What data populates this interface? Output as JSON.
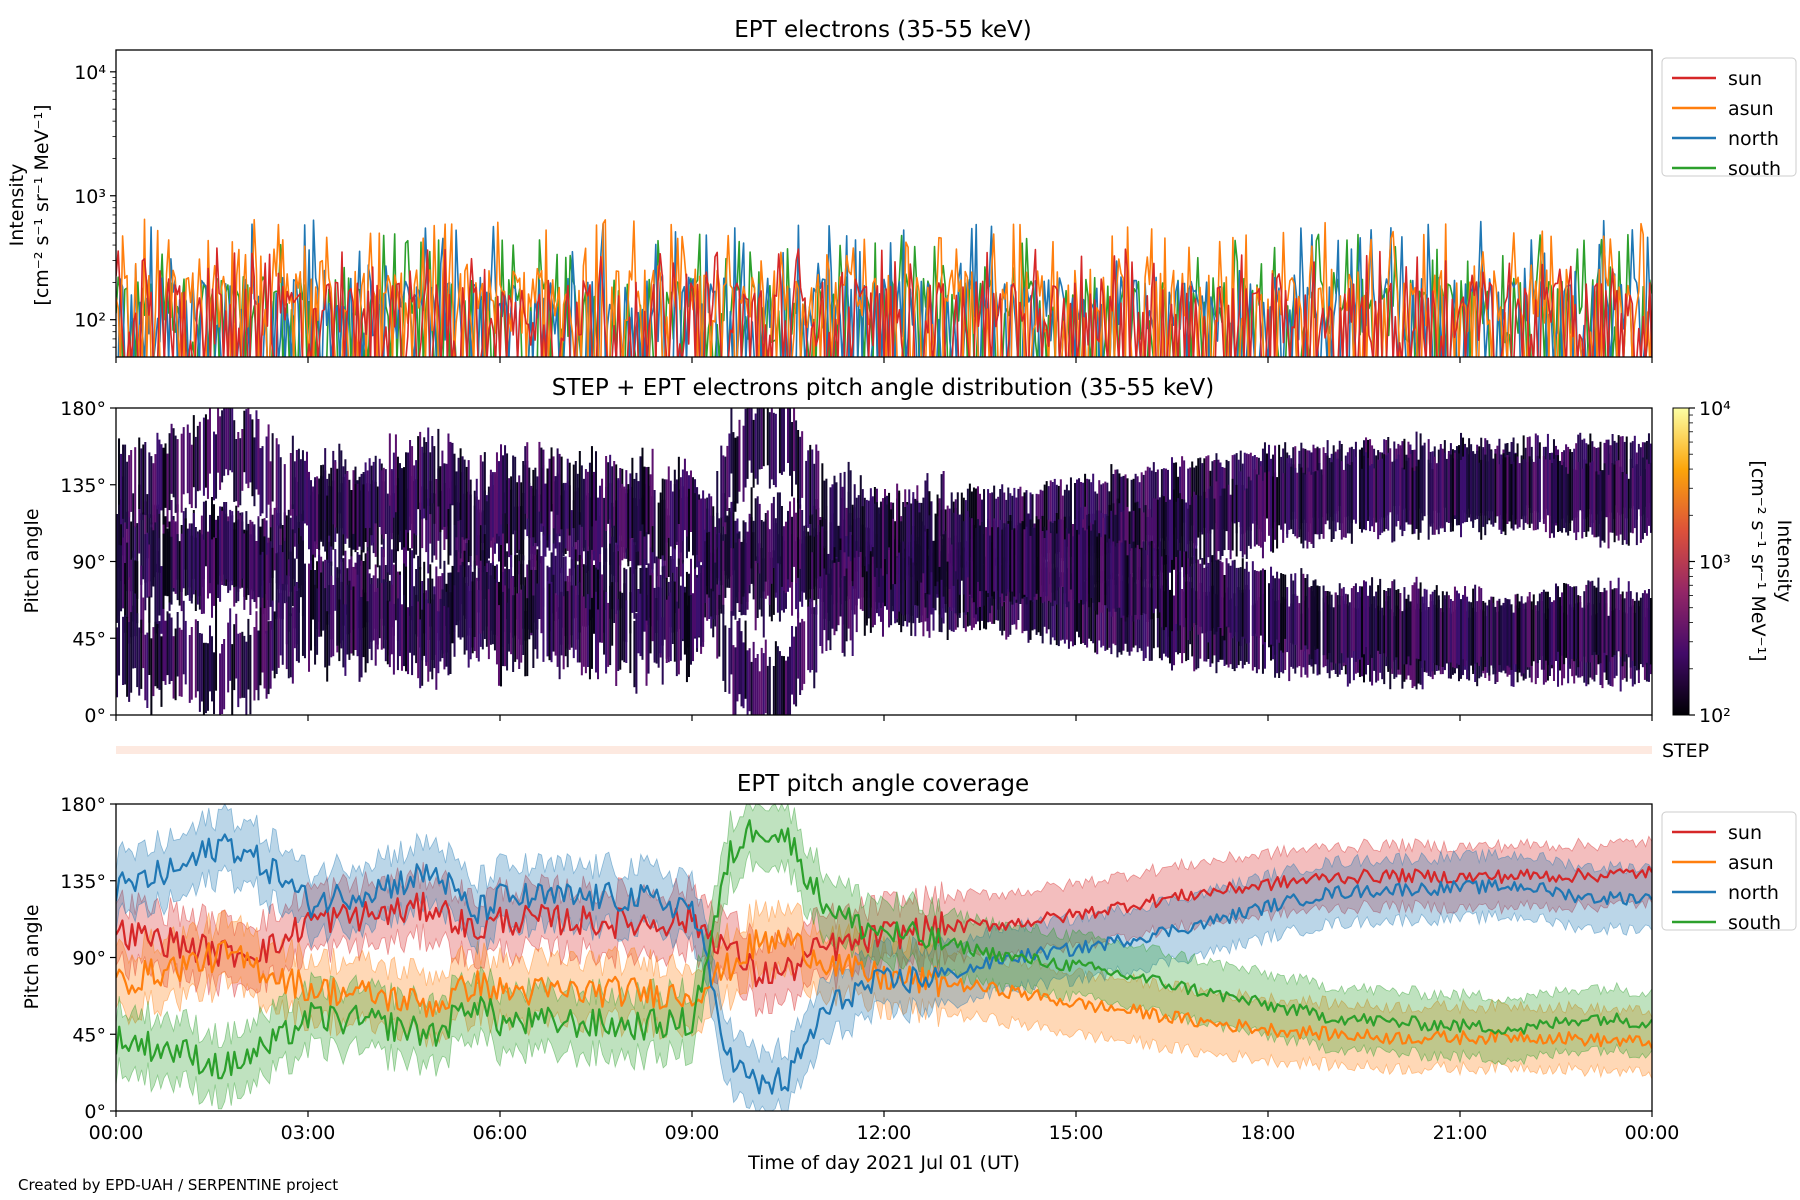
{
  "figure": {
    "credit": "Created by EPD-UAH / SERPENTINE project"
  },
  "chart_data": [
    {
      "type": "line",
      "title": "EPT electrons (35-55 keV)",
      "ylabel": [
        "Intensity",
        "[cm⁻² s⁻¹ sr⁻¹ MeV⁻¹]"
      ],
      "yscale": "log",
      "ylim": [
        50,
        15000
      ],
      "yticks": [
        {
          "value": 100,
          "label": "10²"
        },
        {
          "value": 1000,
          "label": "10³"
        },
        {
          "value": 10000,
          "label": "10⁴"
        }
      ],
      "xlim": [
        "2021-07-01 00:00",
        "2021-07-02 00:00"
      ],
      "legend": "right-outside",
      "series": [
        {
          "name": "sun",
          "color": "#d62728",
          "typical": 120,
          "peak_max": 380
        },
        {
          "name": "asun",
          "color": "#ff7f0e",
          "typical": 150,
          "peak_max": 650
        },
        {
          "name": "north",
          "color": "#1f77b4",
          "typical": 130,
          "peak_max": 650
        },
        {
          "name": "south",
          "color": "#2ca02c",
          "typical": 130,
          "peak_max": 500
        }
      ]
    },
    {
      "type": "heatmap",
      "title": "STEP + EPT electrons pitch angle distribution (35-55 keV)",
      "ylabel": "Pitch angle",
      "ylim": [
        0,
        180
      ],
      "yticks": [
        "0°",
        "45°",
        "90°",
        "135°",
        "180°"
      ],
      "colorbar": {
        "label": [
          "Intensity",
          "[cm⁻² s⁻¹ sr⁻¹ MeV⁻¹]"
        ],
        "scale": "log",
        "range": [
          100,
          10000
        ],
        "ticks": [
          "10²",
          "10³",
          "10⁴"
        ],
        "colormap": "inferno",
        "colors": [
          "#000004",
          "#420a68",
          "#932667",
          "#dd513a",
          "#fca50a",
          "#fcffa4"
        ]
      },
      "step_label": "STEP",
      "bands_follow": "EPT pitch angle coverage"
    },
    {
      "type": "area",
      "title": "EPT pitch angle coverage",
      "ylabel": "Pitch angle",
      "xlabel": "Time of day 2021 Jul 01 (UT)",
      "ylim": [
        0,
        180
      ],
      "yticks": [
        {
          "value": 0,
          "label": "0°"
        },
        {
          "value": 45,
          "label": "45°"
        },
        {
          "value": 90,
          "label": "90°"
        },
        {
          "value": 135,
          "label": "135°"
        },
        {
          "value": 180,
          "label": "180°"
        }
      ],
      "xticks": [
        {
          "hour": 0,
          "label": "00:00"
        },
        {
          "hour": 3,
          "label": "03:00"
        },
        {
          "hour": 6,
          "label": "06:00"
        },
        {
          "hour": 9,
          "label": "09:00"
        },
        {
          "hour": 12,
          "label": "12:00"
        },
        {
          "hour": 15,
          "label": "15:00"
        },
        {
          "hour": 18,
          "label": "18:00"
        },
        {
          "hour": 21,
          "label": "21:00"
        },
        {
          "hour": 24,
          "label": "00:00"
        }
      ],
      "legend": "right-outside",
      "x_hours": [
        0,
        1,
        1.7,
        2.5,
        3,
        4,
        5,
        5.6,
        6,
        7,
        8,
        9,
        9.6,
        10,
        10.5,
        11,
        11.5,
        12,
        13,
        14,
        15,
        16,
        17,
        18,
        19,
        20,
        21,
        22,
        23,
        24
      ],
      "series": [
        {
          "name": "sun",
          "color": "#d62728",
          "band_halfwidth": 18,
          "values": [
            105,
            98,
            92,
            96,
            112,
            115,
            120,
            105,
            112,
            112,
            110,
            112,
            95,
            80,
            82,
            95,
            98,
            103,
            108,
            110,
            115,
            122,
            128,
            133,
            137,
            138,
            137,
            138,
            138,
            140
          ]
        },
        {
          "name": "asun",
          "color": "#ff7f0e",
          "band_halfwidth": 18,
          "values": [
            75,
            85,
            92,
            80,
            72,
            68,
            62,
            75,
            70,
            70,
            70,
            68,
            85,
            98,
            100,
            90,
            82,
            78,
            75,
            70,
            63,
            58,
            52,
            48,
            45,
            43,
            43,
            44,
            42,
            40
          ]
        },
        {
          "name": "north",
          "color": "#1f77b4",
          "band_halfwidth": 18,
          "values": [
            130,
            142,
            158,
            140,
            122,
            130,
            140,
            115,
            125,
            125,
            125,
            120,
            30,
            15,
            18,
            55,
            70,
            75,
            80,
            90,
            95,
            102,
            110,
            120,
            128,
            130,
            131,
            132,
            125,
            125
          ]
        },
        {
          "name": "south",
          "color": "#2ca02c",
          "band_halfwidth": 18,
          "values": [
            42,
            35,
            25,
            40,
            55,
            52,
            45,
            65,
            52,
            52,
            50,
            52,
            150,
            168,
            160,
            125,
            110,
            105,
            98,
            90,
            85,
            78,
            70,
            62,
            55,
            52,
            50,
            48,
            55,
            52
          ]
        }
      ]
    }
  ]
}
